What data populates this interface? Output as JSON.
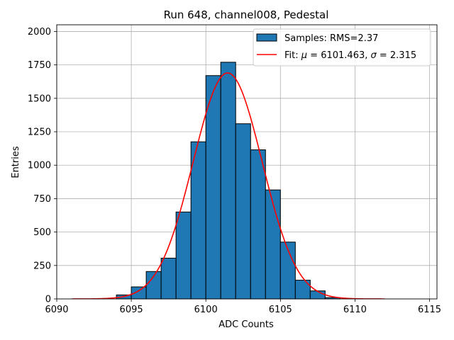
{
  "chart_data": {
    "type": "bar",
    "title": "Run 648, channel008, Pedestal",
    "xlabel": "ADC Counts",
    "ylabel": "Entries",
    "xlim": [
      6090,
      6115.5
    ],
    "ylim": [
      0,
      2050
    ],
    "grid": true,
    "legend_position": "top-right",
    "x_ticks": [
      6090,
      6095,
      6100,
      6105,
      6110,
      6115
    ],
    "y_ticks": [
      0,
      250,
      500,
      750,
      1000,
      1250,
      1500,
      1750,
      2000
    ],
    "bar_color": "#1f77b4",
    "bar_edge_color": "#000000",
    "fit_color": "#ff0000",
    "histogram": {
      "name": "Samples: RMS=2.37",
      "bin_edges": [
        6094,
        6095,
        6096,
        6097,
        6098,
        6099,
        6100,
        6101,
        6102,
        6103,
        6104,
        6105,
        6106,
        6107,
        6108,
        6109
      ],
      "counts": [
        30,
        90,
        205,
        305,
        650,
        1175,
        1670,
        1770,
        1310,
        1115,
        815,
        425,
        140,
        60,
        10
      ]
    },
    "fit": {
      "name": "Fit: μ = 6101.463, σ = 2.315",
      "name_parts": {
        "prefix": "Fit: ",
        "mu_symbol": "μ",
        "mu_text": " = 6101.463, ",
        "sigma_symbol": "σ",
        "sigma_text": " = 2.315"
      },
      "mu": 6101.463,
      "sigma": 2.315,
      "amplitude": 1690,
      "x_range": [
        6091,
        6112
      ]
    }
  }
}
